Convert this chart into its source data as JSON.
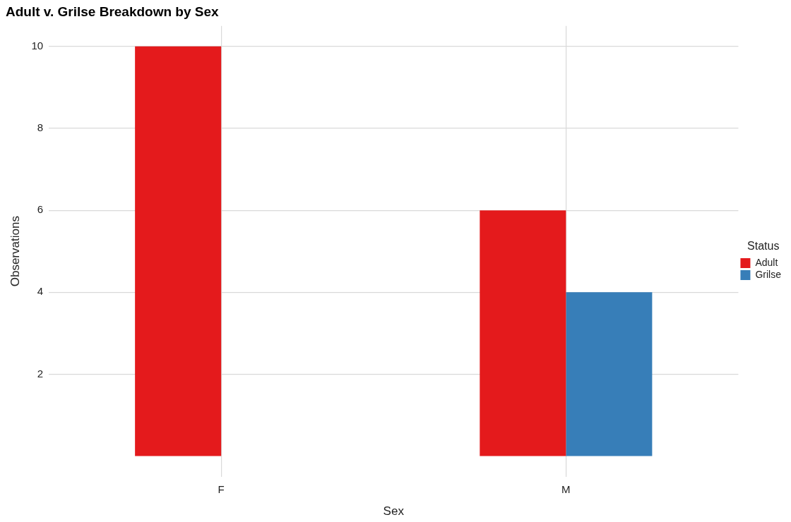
{
  "chart_data": {
    "type": "bar",
    "title": "Adult v. Grilse Breakdown by Sex",
    "xlabel": "Sex",
    "ylabel": "Observations",
    "legend_title": "Status",
    "categories": [
      "F",
      "M"
    ],
    "series": [
      {
        "name": "Adult",
        "color": "#e41a1c",
        "values": [
          10,
          6
        ]
      },
      {
        "name": "Grilse",
        "color": "#377eb8",
        "values": [
          0,
          4
        ]
      }
    ],
    "ylim": [
      -0.5,
      10.5
    ],
    "yticks": [
      2,
      4,
      6,
      8,
      10
    ],
    "grid": true,
    "legend": "right"
  }
}
